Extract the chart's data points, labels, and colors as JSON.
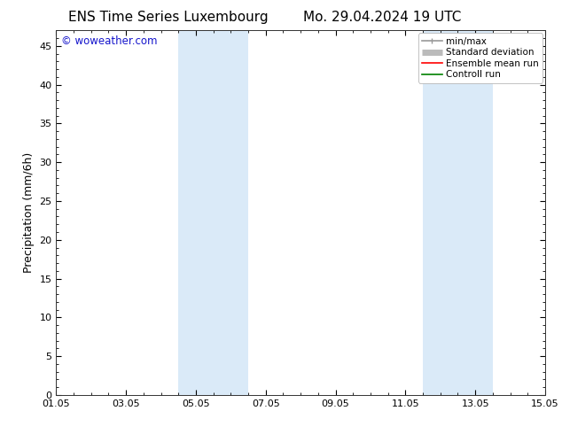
{
  "title_left": "ENS Time Series Luxembourg",
  "title_right": "Mo. 29.04.2024 19 UTC",
  "ylabel": "Precipitation (mm/6h)",
  "xlabel_ticks": [
    "01.05",
    "03.05",
    "05.05",
    "07.05",
    "09.05",
    "11.05",
    "13.05",
    "15.05"
  ],
  "xtick_positions": [
    0,
    2,
    4,
    6,
    8,
    10,
    12,
    14
  ],
  "xlim": [
    0,
    14
  ],
  "ylim": [
    0,
    47
  ],
  "yticks": [
    0,
    5,
    10,
    15,
    20,
    25,
    30,
    35,
    40,
    45
  ],
  "shaded_bands": [
    {
      "xstart": 3.5,
      "xend": 5.5
    },
    {
      "xstart": 10.5,
      "xend": 12.5
    }
  ],
  "shade_color": "#daeaf8",
  "background_color": "#ffffff",
  "watermark_text": "© woweather.com",
  "watermark_color": "#1515cc",
  "legend_items": [
    {
      "label": "min/max",
      "color": "#999999",
      "lw": 1.2
    },
    {
      "label": "Standard deviation",
      "color": "#bbbbbb",
      "lw": 5
    },
    {
      "label": "Ensemble mean run",
      "color": "#ff0000",
      "lw": 1.2
    },
    {
      "label": "Controll run",
      "color": "#008000",
      "lw": 1.2
    }
  ],
  "title_fontsize": 11,
  "tick_label_fontsize": 8,
  "ylabel_fontsize": 9,
  "legend_fontsize": 7.5,
  "watermark_fontsize": 8.5
}
